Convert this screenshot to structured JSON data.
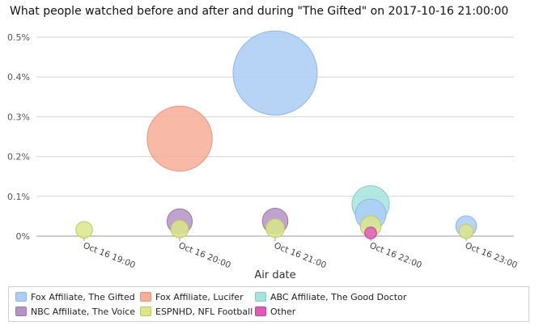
{
  "chart_data": {
    "type": "scatter",
    "title": "What people watched before and after and during \"The Gifted\" on 2017-10-16 21:00:00",
    "xlabel": "Air date",
    "ylabel": "",
    "x_ticks": [
      "Oct 16 19:00",
      "Oct 16 20:00",
      "Oct 16 21:00",
      "Oct 16 22:00",
      "Oct 16 23:00"
    ],
    "y_ticks": [
      "0%",
      "0.1%",
      "0.2%",
      "0.3%",
      "0.4%",
      "0.5%"
    ],
    "ylim": [
      0,
      0.5
    ],
    "xlim": [
      "Oct 16 18:30",
      "Oct 16 23:30"
    ],
    "grid": true,
    "legend_position": "bottom",
    "series": [
      {
        "name": "Fox Affiliate, The Gifted",
        "color": "#aacdf5",
        "stroke": "#8fb6e6",
        "points": [
          {
            "x": "Oct 16 21:00",
            "y": 0.41
          },
          {
            "x": "Oct 16 22:00",
            "y": 0.055
          },
          {
            "x": "Oct 16 23:00",
            "y": 0.025
          }
        ]
      },
      {
        "name": "Fox Affiliate, Lucifer",
        "color": "#f8ad98",
        "stroke": "#e49680",
        "points": [
          {
            "x": "Oct 16 20:00",
            "y": 0.245
          }
        ]
      },
      {
        "name": "ABC Affiliate, The Good Doctor",
        "color": "#a6e3dd",
        "stroke": "#86cbc4",
        "points": [
          {
            "x": "Oct 16 22:00",
            "y": 0.08
          }
        ]
      },
      {
        "name": "NBC Affiliate, The Voice",
        "color": "#b593c4",
        "stroke": "#9a78aa",
        "points": [
          {
            "x": "Oct 16 20:00",
            "y": 0.037
          },
          {
            "x": "Oct 16 21:00",
            "y": 0.038
          }
        ]
      },
      {
        "name": "ESPNHD, NFL Football",
        "color": "#dbe688",
        "stroke": "#bcc86a",
        "points": [
          {
            "x": "Oct 16 19:00",
            "y": 0.016
          },
          {
            "x": "Oct 16 20:00",
            "y": 0.018
          },
          {
            "x": "Oct 16 21:00",
            "y": 0.02
          },
          {
            "x": "Oct 16 22:00",
            "y": 0.025
          },
          {
            "x": "Oct 16 23:00",
            "y": 0.012
          }
        ]
      },
      {
        "name": "Other",
        "color": "#e05bb8",
        "stroke": "#c04598",
        "points": [
          {
            "x": "Oct 16 22:00",
            "y": 0.008
          }
        ]
      }
    ]
  }
}
